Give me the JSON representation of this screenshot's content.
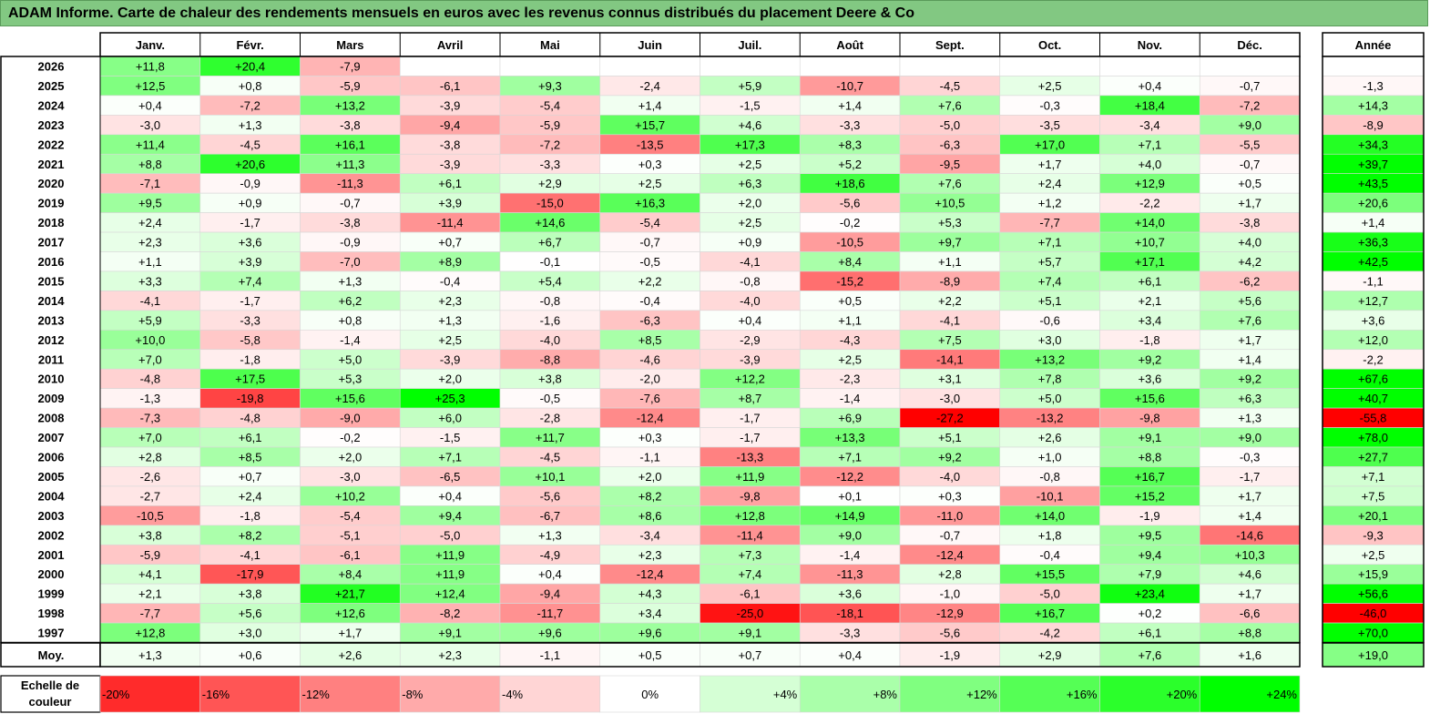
{
  "title": "ADAM Informe. Carte de chaleur des rendements mensuels en euros avec les revenus connus distribués du placement Deere & Co",
  "chart_data": {
    "type": "heatmap",
    "title": "ADAM Informe. Carte de chaleur des rendements mensuels en euros avec les revenus connus distribués du placement Deere & Co",
    "months": [
      "Janv.",
      "Févr.",
      "Mars",
      "Avril",
      "Mai",
      "Juin",
      "Juil.",
      "Août",
      "Sept.",
      "Oct.",
      "Nov.",
      "Déc."
    ],
    "year_header": "Année",
    "rows": [
      {
        "label": "2026",
        "values": [
          11.8,
          20.4,
          -7.9,
          null,
          null,
          null,
          null,
          null,
          null,
          null,
          null,
          null
        ],
        "year": null
      },
      {
        "label": "2025",
        "values": [
          12.5,
          0.8,
          -5.9,
          -6.1,
          9.3,
          -2.4,
          5.9,
          -10.7,
          -4.5,
          2.5,
          0.4,
          -0.7
        ],
        "year": -1.3
      },
      {
        "label": "2024",
        "values": [
          0.4,
          -7.2,
          13.2,
          -3.9,
          -5.4,
          1.4,
          -1.5,
          1.4,
          7.6,
          -0.3,
          18.4,
          -7.2
        ],
        "year": 14.3
      },
      {
        "label": "2023",
        "values": [
          -3.0,
          1.3,
          -3.8,
          -9.4,
          -5.9,
          15.7,
          4.6,
          -3.3,
          -5.0,
          -3.5,
          -3.4,
          9.0
        ],
        "year": -8.9
      },
      {
        "label": "2022",
        "values": [
          11.4,
          -4.5,
          16.1,
          -3.8,
          -7.2,
          -13.5,
          17.3,
          8.3,
          -6.3,
          17.0,
          7.1,
          -5.5
        ],
        "year": 34.3
      },
      {
        "label": "2021",
        "values": [
          8.8,
          20.6,
          11.3,
          -3.9,
          -3.3,
          0.3,
          2.5,
          5.2,
          -9.5,
          1.7,
          4.0,
          -0.7
        ],
        "year": 39.7
      },
      {
        "label": "2020",
        "values": [
          -7.1,
          -0.9,
          -11.3,
          6.1,
          2.9,
          2.5,
          6.3,
          18.6,
          7.6,
          2.4,
          12.9,
          0.5
        ],
        "year": 43.5
      },
      {
        "label": "2019",
        "values": [
          9.5,
          0.9,
          -0.7,
          3.9,
          -15.0,
          16.3,
          2.0,
          -5.6,
          10.5,
          1.2,
          -2.2,
          1.7
        ],
        "year": 20.6
      },
      {
        "label": "2018",
        "values": [
          2.4,
          -1.7,
          -3.8,
          -11.4,
          14.6,
          -5.4,
          2.5,
          -0.2,
          5.3,
          -7.7,
          14.0,
          -3.8
        ],
        "year": 1.4
      },
      {
        "label": "2017",
        "values": [
          2.3,
          3.6,
          -0.9,
          0.7,
          6.7,
          -0.7,
          0.9,
          -10.5,
          9.7,
          7.1,
          10.7,
          4.0
        ],
        "year": 36.3
      },
      {
        "label": "2016",
        "values": [
          1.1,
          3.9,
          -7.0,
          8.9,
          -0.1,
          -0.5,
          -4.1,
          8.4,
          1.1,
          5.7,
          17.1,
          4.2
        ],
        "year": 42.5
      },
      {
        "label": "2015",
        "values": [
          3.3,
          7.4,
          1.3,
          -0.4,
          5.4,
          2.2,
          -0.8,
          -15.2,
          -8.9,
          7.4,
          6.1,
          -6.2
        ],
        "year": -1.1
      },
      {
        "label": "2014",
        "values": [
          -4.1,
          -1.7,
          6.2,
          2.3,
          -0.8,
          -0.4,
          -4.0,
          0.5,
          2.2,
          5.1,
          2.1,
          5.6
        ],
        "year": 12.7
      },
      {
        "label": "2013",
        "values": [
          5.9,
          -3.3,
          0.8,
          1.3,
          -1.6,
          -6.3,
          0.4,
          1.1,
          -4.1,
          -0.6,
          3.4,
          7.6
        ],
        "year": 3.6
      },
      {
        "label": "2012",
        "values": [
          10.0,
          -5.8,
          -1.4,
          2.5,
          -4.0,
          8.5,
          -2.9,
          -4.3,
          7.5,
          3.0,
          -1.8,
          1.7
        ],
        "year": 12.0
      },
      {
        "label": "2011",
        "values": [
          7.0,
          -1.8,
          5.0,
          -3.9,
          -8.8,
          -4.6,
          -3.9,
          2.5,
          -14.1,
          13.2,
          9.2,
          1.4
        ],
        "year": -2.2
      },
      {
        "label": "2010",
        "values": [
          -4.8,
          17.5,
          5.3,
          2.0,
          3.8,
          -2.0,
          12.2,
          -2.3,
          3.1,
          7.8,
          3.6,
          9.2
        ],
        "year": 67.6
      },
      {
        "label": "2009",
        "values": [
          -1.3,
          -19.8,
          15.6,
          25.3,
          -0.5,
          -7.6,
          8.7,
          -1.4,
          -3.0,
          5.0,
          15.6,
          6.3
        ],
        "year": 40.7
      },
      {
        "label": "2008",
        "values": [
          -7.3,
          -4.8,
          -9.0,
          6.0,
          -2.8,
          -12.4,
          -1.7,
          6.9,
          -27.2,
          -13.2,
          -9.8,
          1.3
        ],
        "year": -55.8
      },
      {
        "label": "2007",
        "values": [
          7.0,
          6.1,
          -0.2,
          -1.5,
          11.7,
          0.3,
          -1.7,
          13.3,
          5.1,
          2.6,
          9.1,
          9.0
        ],
        "year": 78.0
      },
      {
        "label": "2006",
        "values": [
          2.8,
          8.5,
          2.0,
          7.1,
          -4.5,
          -1.1,
          -13.3,
          7.1,
          9.2,
          1.0,
          8.8,
          -0.3
        ],
        "year": 27.7
      },
      {
        "label": "2005",
        "values": [
          -2.6,
          0.7,
          -3.0,
          -6.5,
          10.1,
          2.0,
          11.9,
          -12.2,
          -4.0,
          -0.8,
          16.7,
          -1.7
        ],
        "year": 7.1
      },
      {
        "label": "2004",
        "values": [
          -2.7,
          2.4,
          10.2,
          0.4,
          -5.6,
          8.2,
          -9.8,
          0.1,
          0.3,
          -10.1,
          15.2,
          1.7
        ],
        "year": 7.5
      },
      {
        "label": "2003",
        "values": [
          -10.5,
          -1.8,
          -5.4,
          9.4,
          -6.7,
          8.6,
          12.8,
          14.9,
          -11.0,
          14.0,
          -1.9,
          1.4
        ],
        "year": 20.1
      },
      {
        "label": "2002",
        "values": [
          3.8,
          8.2,
          -5.1,
          -5.0,
          1.3,
          -3.4,
          -11.4,
          9.0,
          -0.7,
          1.8,
          9.5,
          -14.6
        ],
        "year": -9.3
      },
      {
        "label": "2001",
        "values": [
          -5.9,
          -4.1,
          -6.1,
          11.9,
          -4.9,
          2.3,
          7.3,
          -1.4,
          -12.4,
          -0.4,
          9.4,
          10.3
        ],
        "year": 2.5
      },
      {
        "label": "2000",
        "values": [
          4.1,
          -17.9,
          8.4,
          11.9,
          0.4,
          -12.4,
          7.4,
          -11.3,
          2.8,
          15.5,
          7.9,
          4.6
        ],
        "year": 15.9
      },
      {
        "label": "1999",
        "values": [
          2.1,
          3.8,
          21.7,
          12.4,
          -9.4,
          4.3,
          -6.1,
          3.6,
          -1.0,
          -5.0,
          23.4,
          1.7
        ],
        "year": 56.6
      },
      {
        "label": "1998",
        "values": [
          -7.7,
          5.6,
          12.6,
          -8.2,
          -11.7,
          3.4,
          -25.0,
          -18.1,
          -12.9,
          16.7,
          0.2,
          -6.6
        ],
        "year": -46.0
      },
      {
        "label": "1997",
        "values": [
          12.8,
          3.0,
          1.7,
          9.1,
          9.6,
          9.6,
          9.1,
          -3.3,
          -5.6,
          -4.2,
          6.1,
          8.8
        ],
        "year": 70.0
      }
    ],
    "average": {
      "label": "Moy.",
      "values": [
        1.3,
        0.6,
        2.6,
        2.3,
        -1.1,
        0.5,
        0.7,
        0.4,
        -1.9,
        2.9,
        7.6,
        1.6
      ],
      "year": 19.0
    },
    "scale": {
      "label": "Echelle de couleur",
      "steps": [
        "-20%",
        "-16%",
        "-12%",
        "-8%",
        "-4%",
        "0%",
        "+4%",
        "+8%",
        "+12%",
        "+16%",
        "+20%",
        "+24%"
      ],
      "values": [
        -20,
        -16,
        -12,
        -8,
        -4,
        0,
        4,
        8,
        12,
        16,
        20,
        24
      ]
    },
    "colors": {
      "negative": "#ff0000",
      "neutral": "#ffffff",
      "positive": "#00ff00"
    }
  }
}
